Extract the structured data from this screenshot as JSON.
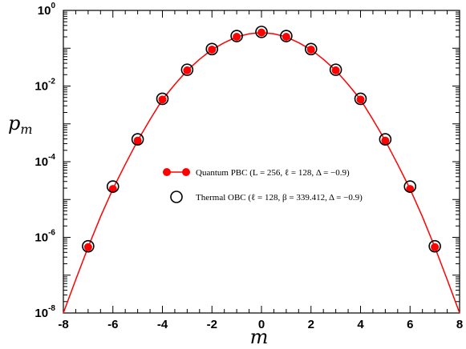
{
  "chart_data": {
    "type": "scatter",
    "xlabel": "m",
    "ylabel": "p",
    "ylabel_sub": "m",
    "xlim": [
      -8,
      8
    ],
    "ylim": [
      1e-08,
      1
    ],
    "yscale": "log",
    "x_ticks": [
      "-8",
      "-6",
      "-4",
      "-2",
      "0",
      "2",
      "4",
      "6",
      "8"
    ],
    "y_ticks": [
      {
        "base": "10",
        "exp": "-8"
      },
      {
        "base": "10",
        "exp": "-6"
      },
      {
        "base": "10",
        "exp": "-4"
      },
      {
        "base": "10",
        "exp": "-2"
      },
      {
        "base": "10",
        "exp": "0"
      }
    ],
    "grid": false,
    "legend_position": "center-right",
    "series": [
      {
        "name": "Quantum PBC (L = 256, ℓ = 128, Δ = −0.9)",
        "color": "#ff0000",
        "marker": "filled-circle",
        "line": true,
        "x": [
          -7,
          -6,
          -5,
          -4,
          -3,
          -2,
          -1,
          0,
          1,
          2,
          3,
          4,
          5,
          6,
          7
        ],
        "y": [
          5.5e-07,
          1.9e-05,
          0.00036,
          0.0044,
          0.026,
          0.092,
          0.2,
          0.26,
          0.2,
          0.092,
          0.026,
          0.0044,
          0.00036,
          1.9e-05,
          5.5e-07
        ]
      },
      {
        "name": "Thermal OBC (ℓ = 128, β = 339.412, Δ = −0.9)",
        "color": "#000000",
        "marker": "open-circle",
        "line": false,
        "x": [
          -7,
          -6,
          -5,
          -4,
          -3,
          -2,
          -1,
          0,
          1,
          2,
          3,
          4,
          5,
          6,
          7
        ],
        "y": [
          5.8e-07,
          2.2e-05,
          0.00039,
          0.0046,
          0.027,
          0.095,
          0.21,
          0.27,
          0.21,
          0.095,
          0.027,
          0.0046,
          0.00039,
          2.2e-05,
          5.8e-07
        ]
      }
    ],
    "curve": {
      "comment_free": true,
      "x": [
        -8,
        -7.5,
        -7,
        -6.5,
        -6,
        -5.5,
        -5,
        -4.5,
        -4,
        -3.5,
        -3,
        -2.5,
        -2,
        -1.5,
        -1,
        -0.5,
        0,
        0.5,
        1,
        1.5,
        2,
        2.5,
        3,
        3.5,
        4,
        4.5,
        5,
        5.5,
        6,
        6.5,
        7,
        7.5,
        8
      ],
      "y": [
        1e-08,
        7.6e-08,
        5.5e-07,
        3.5e-06,
        1.9e-05,
        8.5e-05,
        0.00036,
        0.0013,
        0.0044,
        0.011,
        0.026,
        0.051,
        0.092,
        0.14,
        0.2,
        0.24,
        0.26,
        0.24,
        0.2,
        0.14,
        0.092,
        0.051,
        0.026,
        0.011,
        0.0044,
        0.0013,
        0.00036,
        8.5e-05,
        1.9e-05,
        3.5e-06,
        5.5e-07,
        7.6e-08,
        1e-08
      ]
    }
  }
}
